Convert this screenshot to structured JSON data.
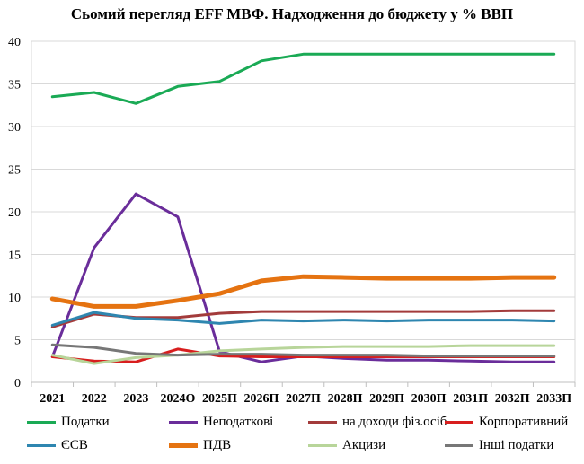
{
  "chart_data": {
    "type": "line",
    "title": "Сьомий перегляд EFF МВФ. Надходження до бюджету у % ВВП",
    "xlabel": "",
    "ylabel": "",
    "ylim": [
      0,
      40
    ],
    "yticks": [
      0,
      5,
      10,
      15,
      20,
      25,
      30,
      35,
      40
    ],
    "grid": true,
    "legend_position": "bottom",
    "categories": [
      "2021",
      "2022",
      "2023",
      "2024О",
      "2025П",
      "2026П",
      "2027П",
      "2028П",
      "2029П",
      "2030П",
      "2031П",
      "2032П",
      "2033П"
    ],
    "series": [
      {
        "name": "Податки",
        "color": "#1aaa55",
        "width": 3,
        "values": [
          33.5,
          34.0,
          32.7,
          34.7,
          35.3,
          37.7,
          38.5,
          38.5,
          38.5,
          38.5,
          38.5,
          38.5,
          38.5
        ]
      },
      {
        "name": "Неподаткові",
        "color": "#6a2d9a",
        "width": 3,
        "values": [
          3.0,
          15.8,
          22.1,
          19.4,
          3.6,
          2.4,
          3.1,
          2.8,
          2.6,
          2.6,
          2.5,
          2.4,
          2.4
        ]
      },
      {
        "name": "на доходи фіз.осіб",
        "color": "#a33b3b",
        "width": 3,
        "values": [
          6.5,
          8.0,
          7.6,
          7.6,
          8.1,
          8.3,
          8.3,
          8.3,
          8.3,
          8.3,
          8.3,
          8.4,
          8.4
        ]
      },
      {
        "name": "Корпоративний",
        "color": "#d81e1e",
        "width": 3,
        "values": [
          3.0,
          2.5,
          2.4,
          3.9,
          3.1,
          3.0,
          3.0,
          3.0,
          3.0,
          3.0,
          3.0,
          3.0,
          3.0
        ]
      },
      {
        "name": "ЄСВ",
        "color": "#2e86b0",
        "width": 3,
        "values": [
          6.7,
          8.2,
          7.5,
          7.3,
          6.9,
          7.3,
          7.2,
          7.3,
          7.2,
          7.3,
          7.3,
          7.3,
          7.2
        ]
      },
      {
        "name": "ПДВ",
        "color": "#e57311",
        "width": 5,
        "values": [
          9.8,
          8.9,
          8.9,
          9.6,
          10.4,
          11.9,
          12.4,
          12.3,
          12.2,
          12.2,
          12.2,
          12.3,
          12.3
        ]
      },
      {
        "name": "Акцизи",
        "color": "#b8d59a",
        "width": 3,
        "values": [
          3.2,
          2.2,
          2.9,
          3.2,
          3.7,
          3.9,
          4.1,
          4.2,
          4.2,
          4.2,
          4.3,
          4.3,
          4.3
        ]
      },
      {
        "name": "Інші податки",
        "color": "#777777",
        "width": 3,
        "values": [
          4.4,
          4.1,
          3.4,
          3.2,
          3.3,
          3.3,
          3.2,
          3.2,
          3.2,
          3.1,
          3.1,
          3.1,
          3.1
        ]
      }
    ]
  }
}
